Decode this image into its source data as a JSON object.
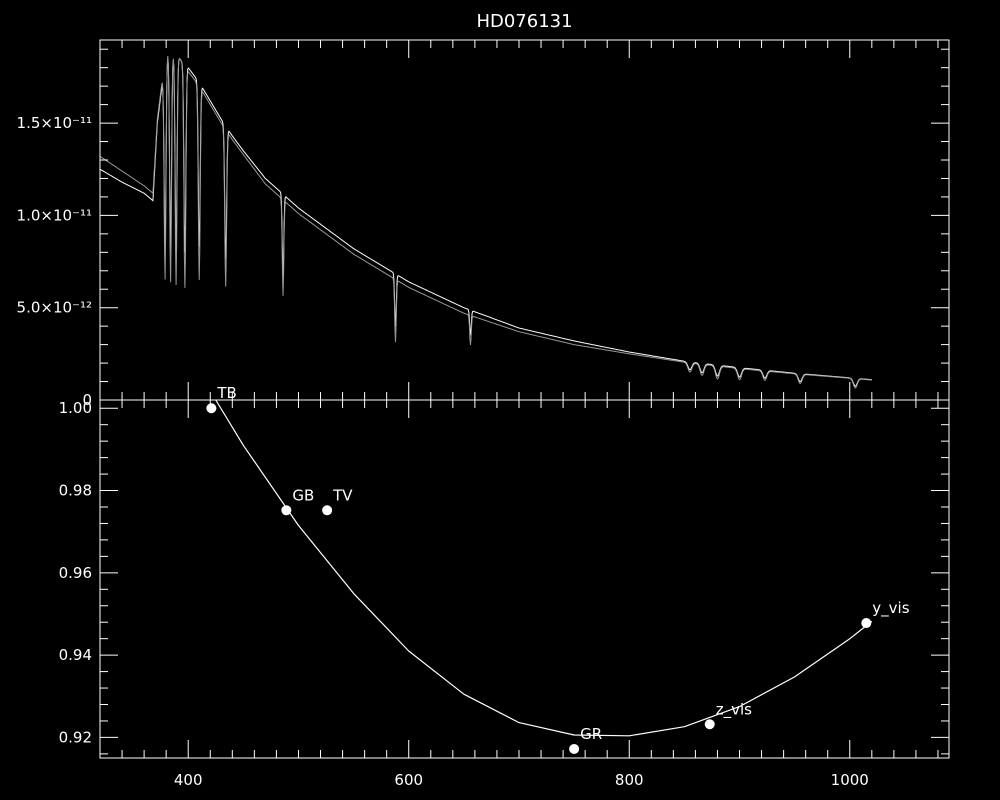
{
  "chart_data": [
    {
      "type": "line",
      "title": "HD076131",
      "xlabel": "",
      "ylabel": "",
      "xlim": [
        320,
        1090
      ],
      "ylim": [
        0,
        1.95e-11
      ],
      "yticks": [
        {
          "value": 0,
          "label": "0"
        },
        {
          "value": 5e-12,
          "label": "5.0×10⁻¹²"
        },
        {
          "value": 1e-11,
          "label": "1.0×10⁻¹¹"
        },
        {
          "value": 1.5e-11,
          "label": "1.5×10⁻¹¹"
        }
      ],
      "series": [
        {
          "color": "#ffffff",
          "x": [
            320,
            340,
            360,
            368,
            372,
            380,
            390,
            400,
            410,
            420,
            430,
            440,
            450,
            470,
            500,
            550,
            600,
            650,
            700,
            750,
            800,
            850,
            900,
            950,
            1000,
            1020
          ],
          "y": [
            1.25e-11,
            1.18e-11,
            1.12e-11,
            1.08e-11,
            1.5e-11,
            1.88e-11,
            1.86e-11,
            1.8e-11,
            1.72e-11,
            1.62e-11,
            1.52e-11,
            1.43e-11,
            1.35e-11,
            1.2e-11,
            1.04e-11,
            8.2e-12,
            6.4e-12,
            5e-12,
            3.9e-12,
            3.2e-12,
            2.6e-12,
            2.1e-12,
            1.75e-12,
            1.45e-12,
            1.2e-12,
            1.1e-12
          ]
        },
        {
          "color": "#999999",
          "x": [
            320,
            340,
            360,
            368,
            372,
            380,
            390,
            400,
            410,
            420,
            430,
            440,
            450,
            470,
            500,
            550,
            600,
            650,
            700,
            750,
            800,
            850,
            900,
            950,
            1000,
            1020
          ],
          "y": [
            1.32e-11,
            1.24e-11,
            1.16e-11,
            1.12e-11,
            1.52e-11,
            1.9e-11,
            1.87e-11,
            1.78e-11,
            1.7e-11,
            1.6e-11,
            1.5e-11,
            1.41e-11,
            1.33e-11,
            1.17e-11,
            1.01e-11,
            7.9e-12,
            6.1e-12,
            4.7e-12,
            3.7e-12,
            3e-12,
            2.5e-12,
            2.05e-12,
            1.7e-12,
            1.42e-12,
            1.18e-12,
            1.08e-12
          ]
        }
      ],
      "absorption_lines": [
        {
          "x": 379,
          "depth": 1.2e-11
        },
        {
          "x": 384,
          "depth": 1.25e-11
        },
        {
          "x": 389,
          "depth": 1.25e-11
        },
        {
          "x": 397,
          "depth": 1.2e-11
        },
        {
          "x": 410,
          "depth": 1.05e-11
        },
        {
          "x": 434,
          "depth": 8.5e-12
        },
        {
          "x": 486,
          "depth": 5.2e-12
        },
        {
          "x": 588,
          "depth": 3.4e-12
        },
        {
          "x": 656,
          "depth": 1.6e-12
        },
        {
          "x": 855,
          "depth": 5e-13
        },
        {
          "x": 866,
          "depth": 6e-13
        },
        {
          "x": 880,
          "depth": 7e-13
        },
        {
          "x": 900,
          "depth": 6e-13
        },
        {
          "x": 923,
          "depth": 5e-13
        },
        {
          "x": 955,
          "depth": 5e-13
        },
        {
          "x": 1005,
          "depth": 5e-13
        }
      ]
    },
    {
      "type": "scatter",
      "xlabel": "",
      "ylabel": "",
      "xlim": [
        320,
        1090
      ],
      "ylim": [
        0.915,
        1.002
      ],
      "xticks": [
        400,
        600,
        800,
        1000
      ],
      "yticks": [
        {
          "value": 0.92,
          "label": "0.92"
        },
        {
          "value": 0.94,
          "label": "0.94"
        },
        {
          "value": 0.96,
          "label": "0.96"
        },
        {
          "value": 0.98,
          "label": "0.98"
        },
        {
          "value": 1.0,
          "label": "1.00"
        }
      ],
      "points": [
        {
          "x": 421,
          "y": 1.0,
          "label": "TB"
        },
        {
          "x": 489,
          "y": 0.9752,
          "label": "GB"
        },
        {
          "x": 526,
          "y": 0.9752,
          "label": "TV"
        },
        {
          "x": 750,
          "y": 0.9172,
          "label": "GR"
        },
        {
          "x": 873,
          "y": 0.9232,
          "label": "z_vis"
        },
        {
          "x": 1015,
          "y": 0.9478,
          "label": "y_vis"
        }
      ],
      "fit": {
        "x": [
          425,
          450,
          500,
          550,
          600,
          650,
          700,
          750,
          800,
          850,
          900,
          950,
          1000,
          1020
        ],
        "y": [
          1.002,
          0.991,
          0.9715,
          0.955,
          0.941,
          0.9305,
          0.9236,
          0.9206,
          0.9204,
          0.9226,
          0.9275,
          0.9347,
          0.944,
          0.9482
        ]
      }
    }
  ]
}
